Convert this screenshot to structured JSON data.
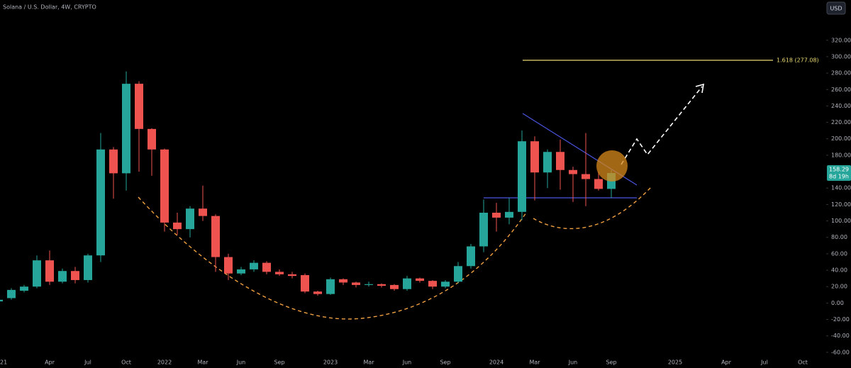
{
  "header": {
    "symbol": "Solana / U.S. Dollar, 4W, CRYPTO",
    "currency": "USD"
  },
  "chart_data": {
    "type": "candlestick",
    "categories": [
      "21",
      null,
      null,
      null,
      "Apr",
      null,
      null,
      "Jul",
      null,
      null,
      "Oct",
      null,
      null,
      "2022",
      null,
      null,
      "Mar",
      null,
      null,
      "Jun",
      null,
      null,
      "Sep",
      null,
      null,
      null,
      "2023",
      null,
      null,
      "Mar",
      null,
      null,
      "Jun",
      null,
      null,
      "Sep",
      null,
      null,
      null,
      "2024",
      null,
      null,
      "Mar",
      null,
      null,
      "Jun",
      null,
      null,
      "Sep",
      null,
      null,
      null,
      null,
      "2025",
      null,
      null,
      null,
      "Apr",
      null,
      null,
      "Jul",
      null,
      null,
      "Oct",
      null
    ],
    "open": [
      2,
      6,
      15,
      20,
      52,
      26,
      39,
      28,
      58,
      187,
      158,
      267,
      212,
      187,
      98,
      90,
      115,
      106,
      56,
      36,
      41,
      49,
      38,
      35,
      34,
      14,
      11,
      29,
      25,
      22,
      23,
      22,
      17,
      30,
      27,
      20,
      26,
      45,
      69,
      110,
      104,
      111,
      197,
      159,
      184,
      162,
      157,
      151,
      139,
      null,
      null,
      null,
      null,
      null,
      null,
      null,
      null,
      null,
      null,
      null,
      null,
      null,
      null,
      null,
      null
    ],
    "high": [
      6,
      18,
      22,
      58,
      64,
      42,
      44,
      60,
      207,
      190,
      282,
      270,
      213,
      188,
      110,
      118,
      143,
      108,
      60,
      44,
      52,
      51,
      41,
      38,
      36,
      15,
      31,
      30,
      26,
      26,
      24,
      23,
      33,
      31,
      28,
      28,
      50,
      72,
      126,
      122,
      128,
      210,
      203,
      187,
      199,
      166,
      207,
      160,
      162,
      null,
      null,
      null,
      null,
      null,
      null,
      null,
      null,
      null,
      null,
      null,
      null,
      null,
      null,
      null,
      null
    ],
    "low": [
      0,
      4,
      13,
      18,
      22,
      24,
      24,
      25,
      50,
      127,
      137,
      160,
      155,
      87,
      83,
      80,
      100,
      38,
      28,
      34,
      38,
      35,
      33,
      30,
      12,
      9,
      10,
      22,
      19,
      20,
      19,
      15,
      15,
      25,
      17,
      18,
      24,
      42,
      62,
      87,
      96,
      101,
      125,
      140,
      138,
      123,
      118,
      137,
      128,
      null,
      null,
      null,
      null,
      null,
      null,
      null,
      null,
      null,
      null,
      null,
      null,
      null,
      null,
      null,
      null
    ],
    "close": [
      4,
      16,
      20,
      52,
      26,
      39,
      28,
      58,
      187,
      158,
      267,
      212,
      187,
      98,
      90,
      115,
      106,
      56,
      36,
      41,
      49,
      38,
      35,
      33,
      14,
      11,
      29,
      25,
      22,
      23,
      21,
      17,
      30,
      27,
      20,
      26,
      45,
      69,
      110,
      104,
      111,
      197,
      159,
      184,
      162,
      157,
      151,
      139,
      158.29,
      null,
      null,
      null,
      null,
      null,
      null,
      null,
      null,
      null,
      null,
      null,
      null,
      null,
      null,
      null,
      null
    ],
    "up_color": "#26a69a",
    "down_color": "#ef5350",
    "ylim": [
      -67,
      369
    ],
    "yticks": [
      {
        "value": 320,
        "label": "320.00"
      },
      {
        "value": 300,
        "label": "300.00"
      },
      {
        "value": 280,
        "label": "280.00"
      },
      {
        "value": 260,
        "label": "260.00"
      },
      {
        "value": 240,
        "label": "240.00"
      },
      {
        "value": 220,
        "label": "220.00"
      },
      {
        "value": 200,
        "label": "200.00"
      },
      {
        "value": 180,
        "label": "180.00"
      },
      {
        "value": 140,
        "label": "140.00"
      },
      {
        "value": 120,
        "label": "120.00"
      },
      {
        "value": 100,
        "label": "100.00"
      },
      {
        "value": 80,
        "label": "80.00"
      },
      {
        "value": 60,
        "label": "60.00"
      },
      {
        "value": 40,
        "label": "40.00"
      },
      {
        "value": 20,
        "label": "20.00"
      },
      {
        "value": 0,
        "label": "0.00"
      },
      {
        "value": -20,
        "label": "-20.00"
      },
      {
        "value": -40,
        "label": "-40.00"
      },
      {
        "value": -60,
        "label": "-60.00"
      }
    ],
    "last_price": 158.29,
    "countdown": "8d 19h",
    "annotation": "1.618 (277.08)"
  }
}
